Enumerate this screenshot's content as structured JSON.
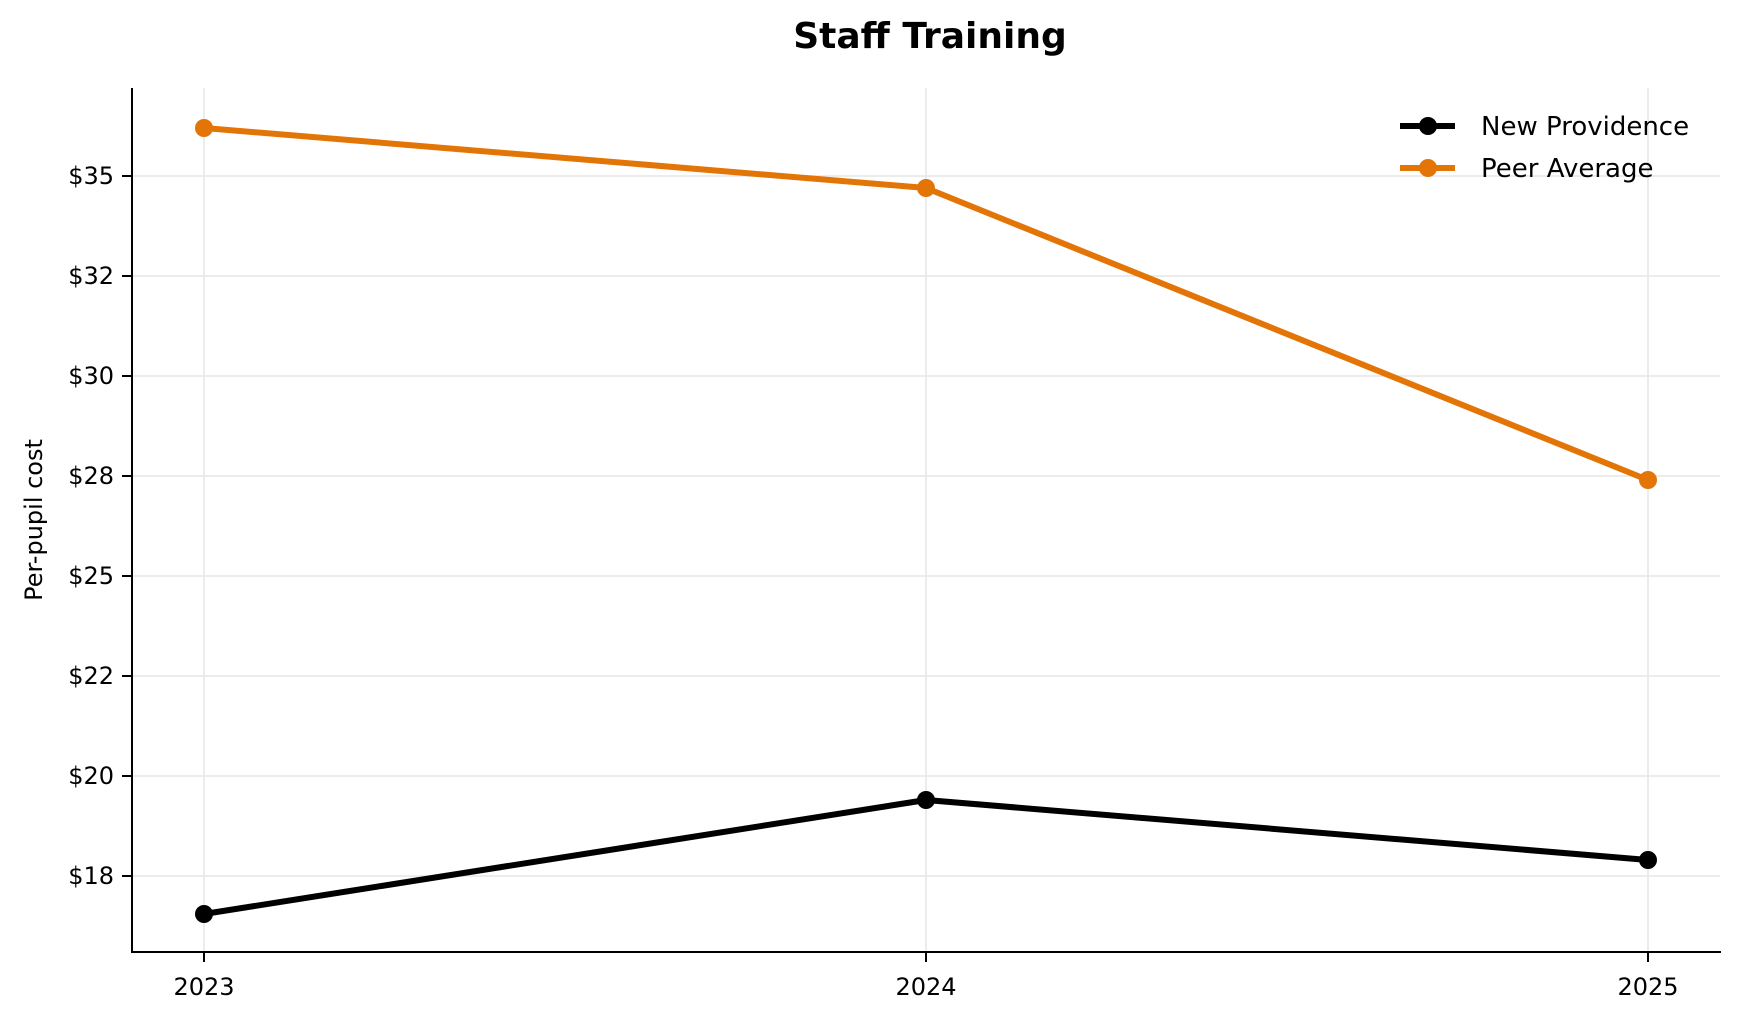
{
  "chart_data": {
    "type": "line",
    "title": "Staff Training",
    "xlabel": "",
    "ylabel": "Per-pupil cost",
    "categories": [
      "2023",
      "2024",
      "2025"
    ],
    "series": [
      {
        "name": "New Providence",
        "color": "#000000",
        "values": [
          16.55,
          19.4,
          17.9
        ]
      },
      {
        "name": "Peer Average",
        "color": "#e37406",
        "values": [
          36.2,
          34.7,
          27.4
        ]
      }
    ],
    "y_ticks": [
      17.5,
      20,
      22.5,
      25,
      27.5,
      30,
      32.5,
      35
    ],
    "y_tick_labels": [
      "$18",
      "$20",
      "$22",
      "$25",
      "$28",
      "$30",
      "$32",
      "$35"
    ],
    "ylim": [
      15.55,
      37.1
    ],
    "grid": true,
    "legend_position": "upper right"
  }
}
